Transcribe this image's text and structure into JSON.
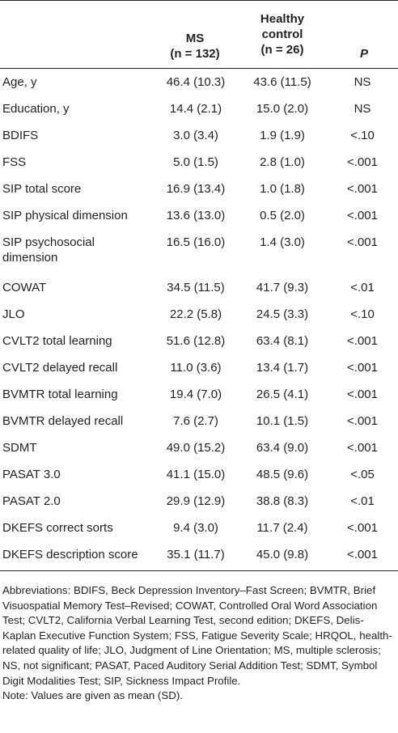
{
  "table": {
    "headers": {
      "ms_line1": "MS",
      "ms_line2": "(n = 132)",
      "hc_line1": "Healthy",
      "hc_line2": "control",
      "hc_line3": "(n = 26)",
      "p": "P"
    },
    "rows": [
      {
        "label": "Age, y",
        "ms": "46.4 (10.3)",
        "hc": "43.6 (11.5)",
        "p": "NS"
      },
      {
        "label": "Education, y",
        "ms": "14.4 (2.1)",
        "hc": "15.0 (2.0)",
        "p": "NS"
      },
      {
        "label": "BDIFS",
        "ms": "3.0 (3.4)",
        "hc": "1.9 (1.9)",
        "p": "<.10"
      },
      {
        "label": "FSS",
        "ms": "5.0 (1.5)",
        "hc": "2.8 (1.0)",
        "p": "<.001"
      },
      {
        "label": "SIP total score",
        "ms": "16.9 (13.4)",
        "hc": "1.0 (1.8)",
        "p": "<.001"
      },
      {
        "label": "SIP physical dimension",
        "ms": "13.6 (13.0)",
        "hc": "0.5 (2.0)",
        "p": "<.001"
      },
      {
        "label": "SIP psychosocial dimension",
        "ms": "16.5 (16.0)",
        "hc": "1.4 (3.0)",
        "p": "<.001"
      },
      {
        "label": "COWAT",
        "ms": "34.5 (11.5)",
        "hc": "41.7 (9.3)",
        "p": "<.01"
      },
      {
        "label": "JLO",
        "ms": "22.2 (5.8)",
        "hc": "24.5 (3.3)",
        "p": "<.10"
      },
      {
        "label": "CVLT2 total learning",
        "ms": "51.6 (12.8)",
        "hc": "63.4 (8.1)",
        "p": "<.001"
      },
      {
        "label": "CVLT2 delayed recall",
        "ms": "11.0 (3.6)",
        "hc": "13.4 (1.7)",
        "p": "<.001"
      },
      {
        "label": "BVMTR total learning",
        "ms": "19.4 (7.0)",
        "hc": "26.5 (4.1)",
        "p": "<.001"
      },
      {
        "label": "BVMTR delayed recall",
        "ms": "7.6 (2.7)",
        "hc": "10.1 (1.5)",
        "p": "<.001"
      },
      {
        "label": "SDMT",
        "ms": "49.0 (15.2)",
        "hc": "63.4 (9.0)",
        "p": "<.001"
      },
      {
        "label": "PASAT 3.0",
        "ms": "41.1 (15.0)",
        "hc": "48.5 (9.6)",
        "p": "<.05"
      },
      {
        "label": "PASAT 2.0",
        "ms": "29.9 (12.9)",
        "hc": "38.8 (8.3)",
        "p": "<.01"
      },
      {
        "label": "DKEFS correct sorts",
        "ms": "9.4 (3.0)",
        "hc": "11.7 (2.4)",
        "p": "<.001"
      },
      {
        "label": "DKEFS description score",
        "ms": "35.1 (11.7)",
        "hc": "45.0 (9.8)",
        "p": "<.001"
      }
    ]
  },
  "footnote": {
    "abbreviations": "Abbreviations: BDIFS, Beck Depression Inventory–Fast Screen; BVMTR, Brief Visuospatial Memory Test–Revised; COWAT, Controlled Oral Word Association Test; CVLT2, California Verbal Learning Test, second edition; DKEFS, Delis-Kaplan Executive Function System; FSS, Fatigue Severity Scale; HRQOL, health-related quality of life; JLO, Judgment of Line Orientation; MS, multiple sclerosis; NS, not significant; PASAT, Paced Auditory Serial Addition Test; SDMT, Symbol Digit Modalities Test; SIP, Sickness Impact Profile.",
    "note": "Note: Values are given as mean (SD)."
  }
}
